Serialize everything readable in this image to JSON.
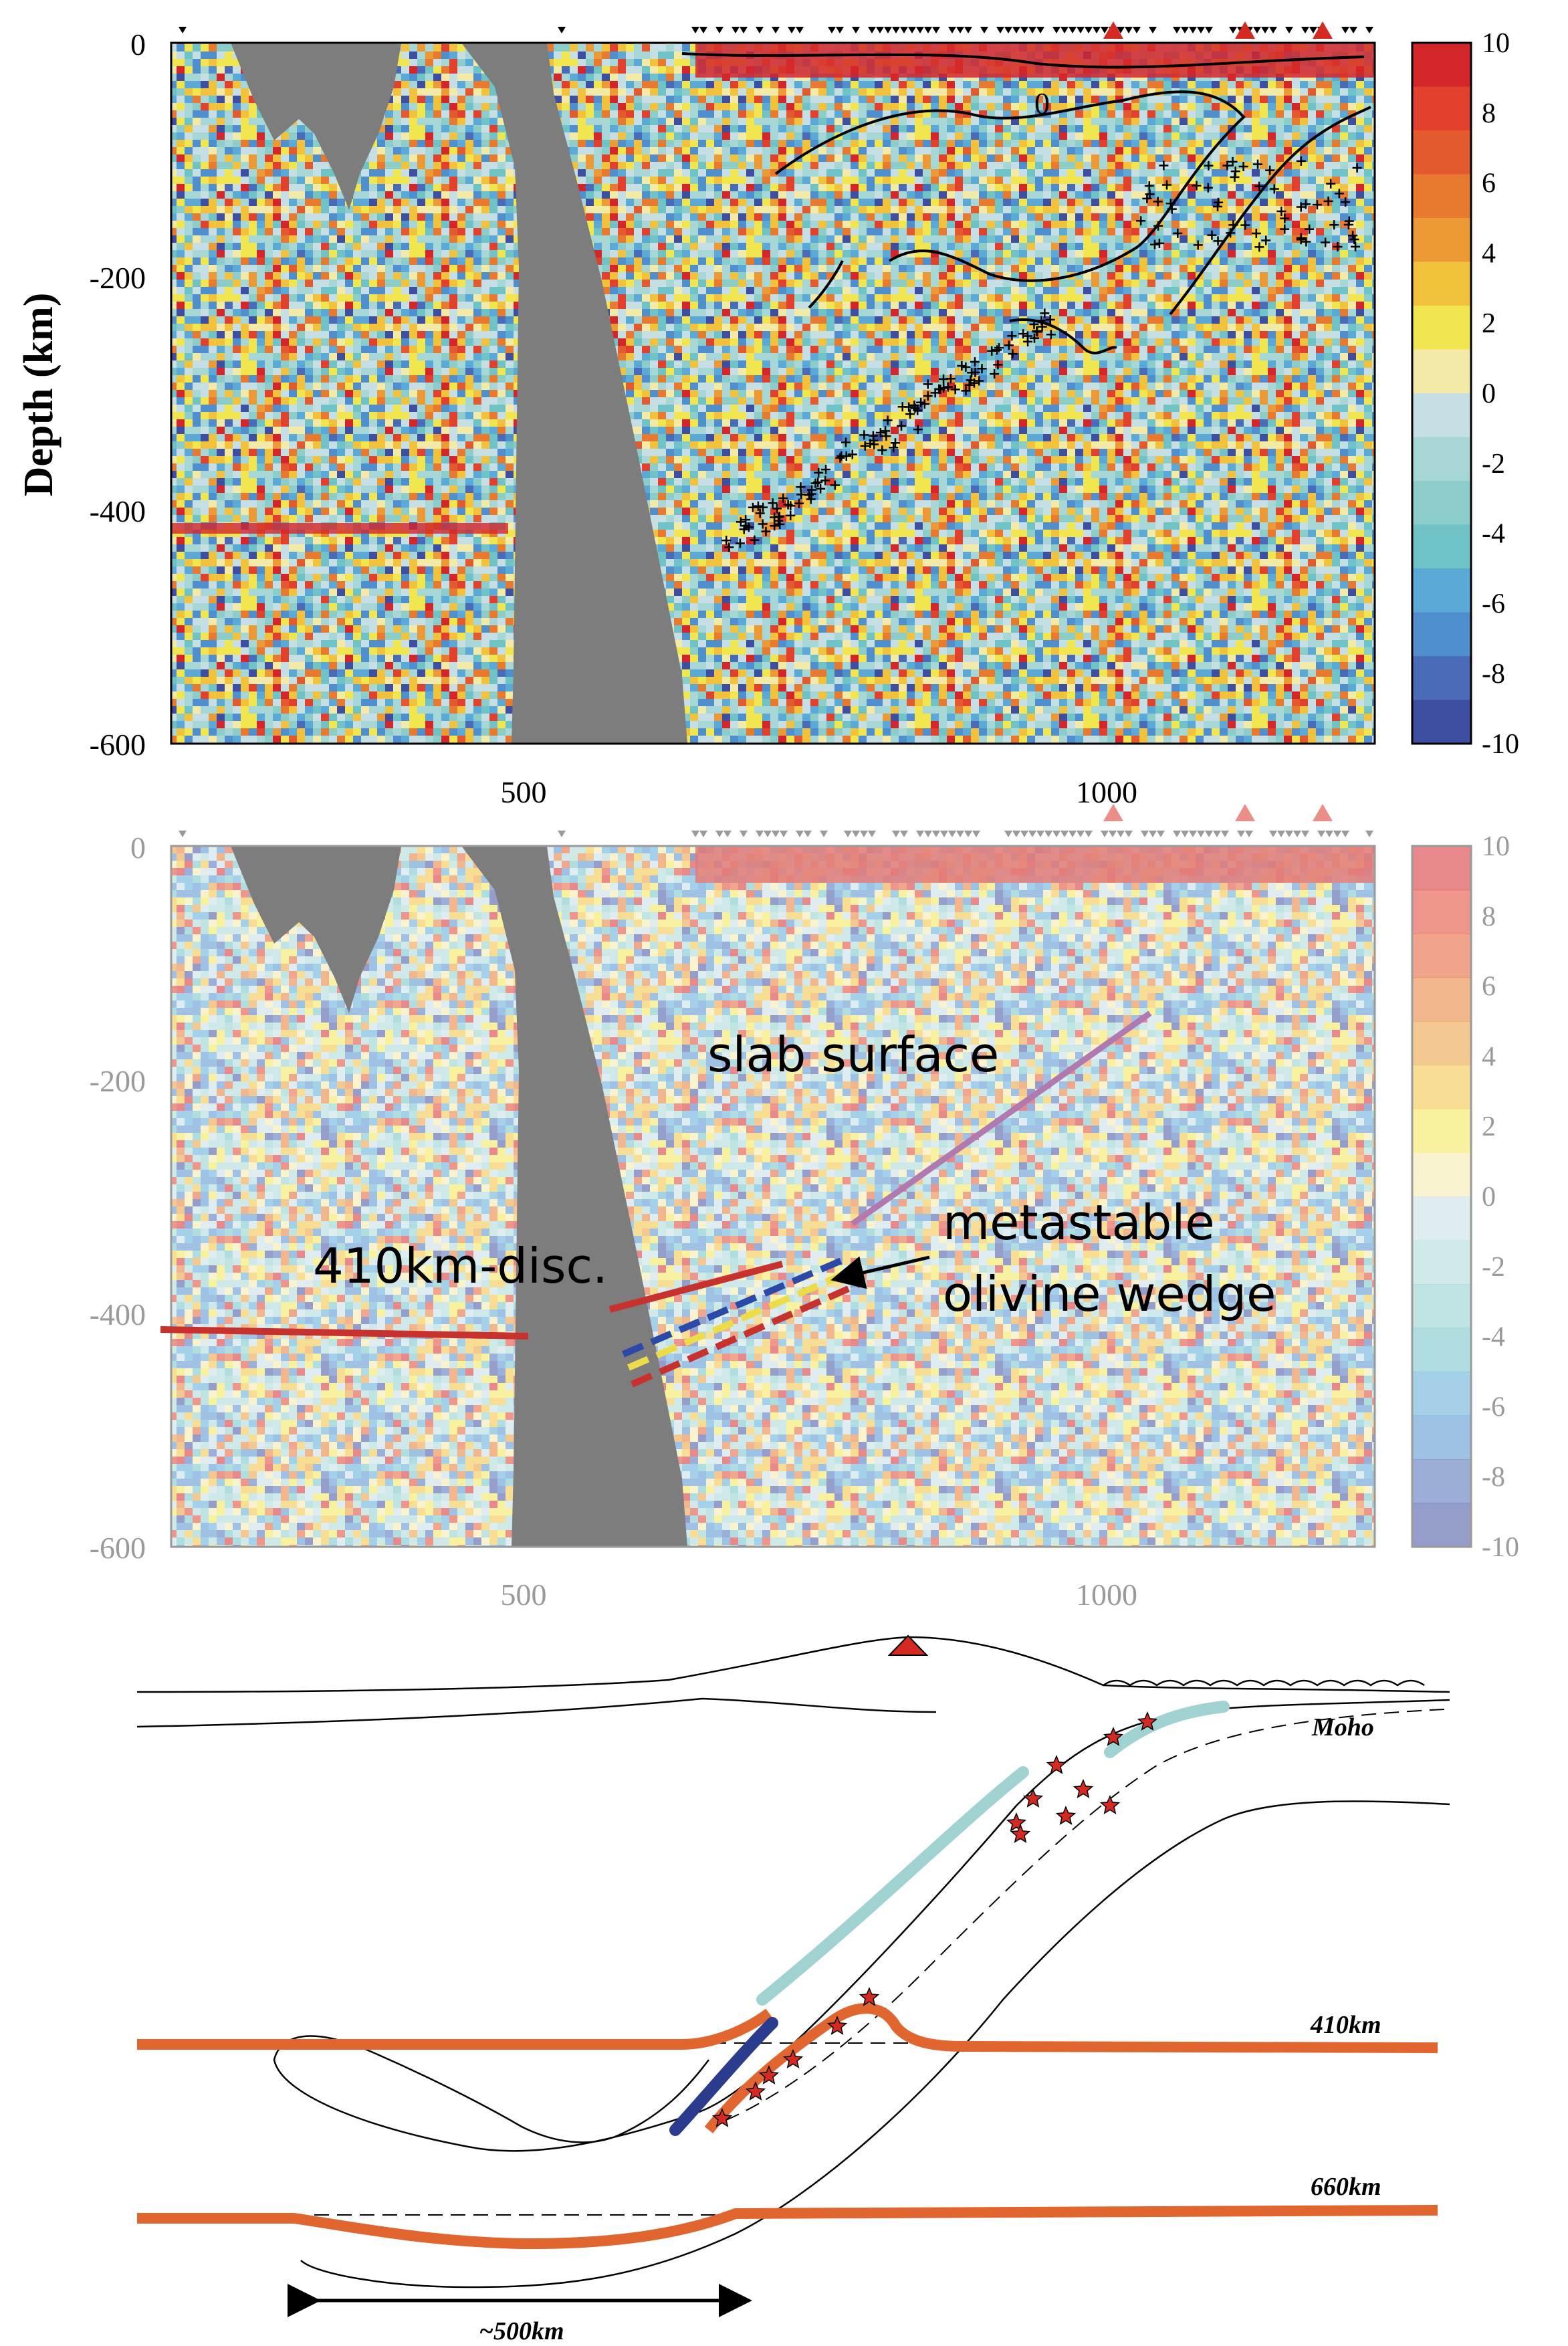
{
  "panel_a": {
    "y_axis_label": "Depth (km)",
    "y_ticks": [
      "0",
      "-200",
      "-400",
      "-600"
    ],
    "x_ticks": [
      "500",
      "1000"
    ],
    "colorbar_ticks": [
      "10",
      "8",
      "6",
      "4",
      "2",
      "0",
      "-2",
      "-4",
      "-6",
      "-8",
      "-10"
    ],
    "contour_label": "0"
  },
  "panel_b": {
    "y_ticks": [
      "0",
      "-200",
      "-400",
      "-600"
    ],
    "x_ticks": [
      "500",
      "1000"
    ],
    "colorbar_ticks": [
      "10",
      "8",
      "6",
      "4",
      "2",
      "0",
      "-2",
      "-4",
      "-6",
      "-8",
      "-10"
    ],
    "annotations": {
      "slab_surface": "slab surface",
      "disc_410": "410km-disc.",
      "wedge_line1": "metastable",
      "wedge_line2": "olivine wedge"
    }
  },
  "panel_c": {
    "labels": {
      "moho": "Moho",
      "d410": "410km",
      "d660": "660km",
      "width": "~500km"
    }
  },
  "colors": {
    "colorbar": [
      "#d4262a",
      "#e0402c",
      "#e35a2e",
      "#e87a30",
      "#eb9a36",
      "#f2c23c",
      "#f2e650",
      "#f2eaa6",
      "#c6dfe4",
      "#a7d6d6",
      "#8ccdc9",
      "#6fc3c6",
      "#5aa9d6",
      "#4f8fce",
      "#4a6cb8",
      "#3e4ea0"
    ],
    "volcano": "#d42a22",
    "discontinuity": "#e0652f",
    "slab_mantle_teal": "#9fd2d0",
    "metastable_blue": "#2b3c8f",
    "slab_surface_line": "#b07ab0",
    "gray_mask": "#7d7d7d"
  }
}
